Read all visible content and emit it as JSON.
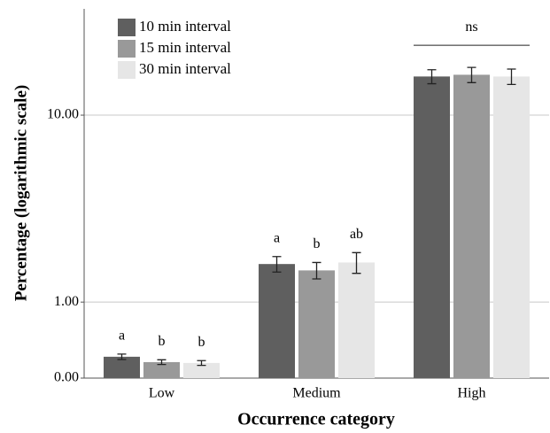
{
  "chart_data": {
    "type": "bar",
    "xlabel": "Occurrence category",
    "ylabel": "Percentage  (logarithmic scale)",
    "categories": [
      "Low",
      "Medium",
      "High"
    ],
    "yscale": "log1p",
    "ylim": [
      0,
      28
    ],
    "yticks": [
      {
        "value": 0,
        "label": "0.00"
      },
      {
        "value": 1,
        "label": "1.00"
      },
      {
        "value": 10,
        "label": "10.00"
      }
    ],
    "grid": true,
    "legend": "upper left",
    "series": [
      {
        "name": "10 min interval",
        "color": "#5f5f5f",
        "values": [
          0.215,
          1.83,
          14.65
        ],
        "errors": [
          0.03,
          0.2,
          1.0
        ],
        "labels": [
          "a",
          "a",
          null
        ]
      },
      {
        "name": "15 min interval",
        "color": "#999999",
        "values": [
          0.157,
          1.67,
          14.9
        ],
        "errors": [
          0.025,
          0.2,
          1.1
        ],
        "labels": [
          "b",
          "b",
          null
        ]
      },
      {
        "name": "30 min interval",
        "color": "#e6e6e6",
        "values": [
          0.148,
          1.87,
          14.65
        ],
        "errors": [
          0.025,
          0.27,
          1.1
        ],
        "labels": [
          "b",
          "ab",
          null
        ]
      }
    ],
    "group_labels": [
      null,
      null,
      "ns"
    ]
  }
}
